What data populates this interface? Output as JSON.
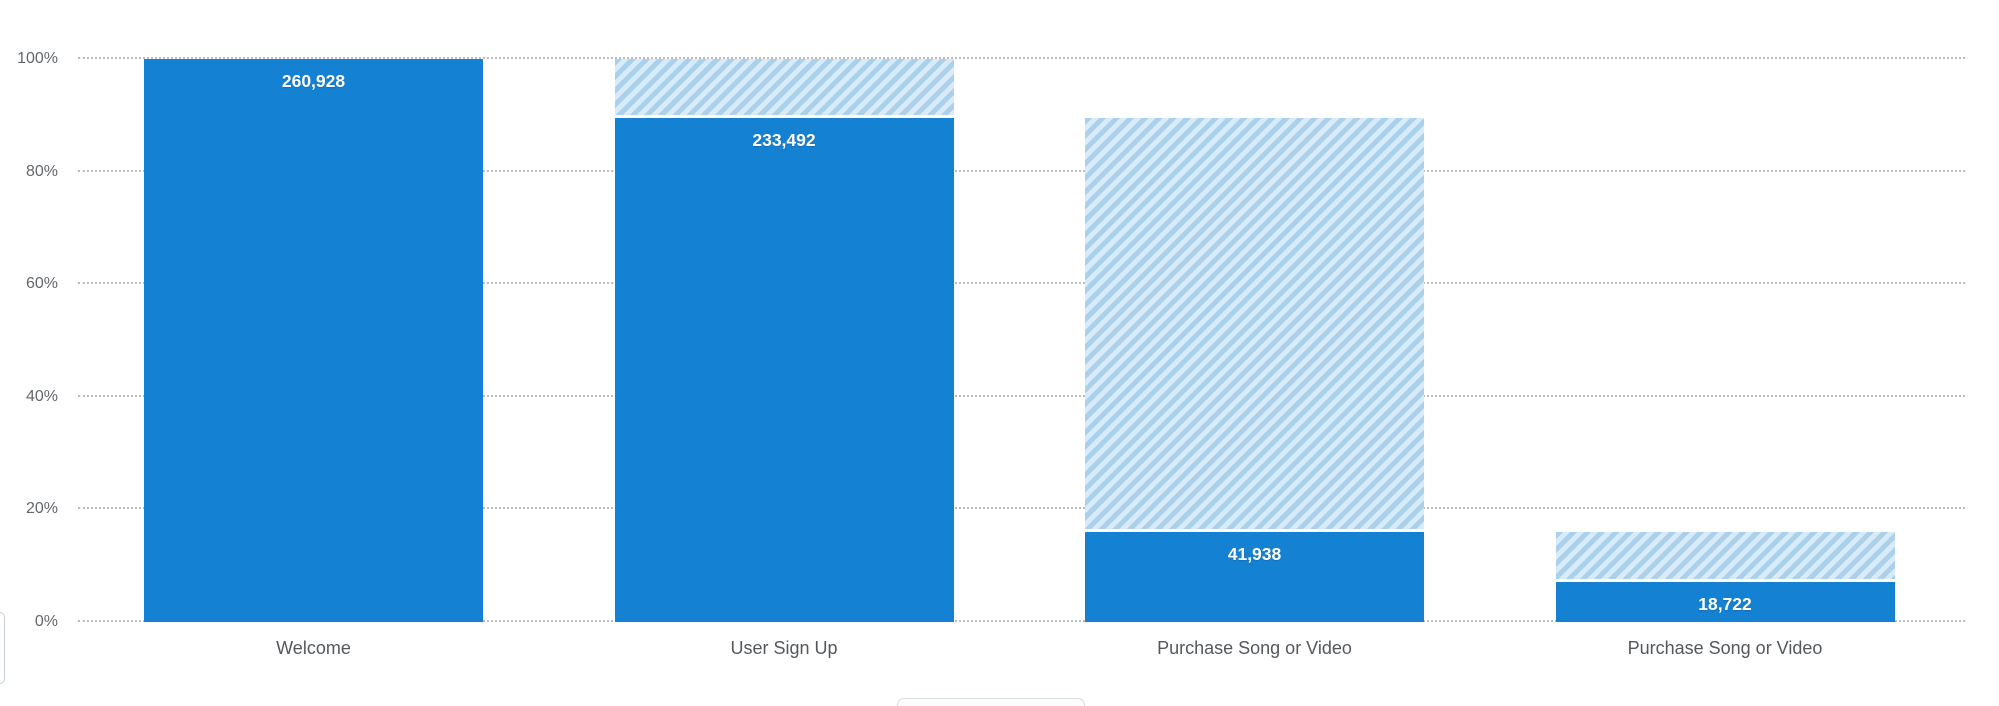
{
  "chart_data": {
    "type": "bar",
    "subtype": "funnel-conversion",
    "title": "",
    "xlabel": "",
    "ylabel": "",
    "ylim": [
      0,
      100
    ],
    "grid": "horizontal dotted",
    "legend": "none",
    "categories": [
      "Welcome",
      "User Sign Up",
      "Purchase Song or Video",
      "Purchase Song or Video"
    ],
    "series": [
      {
        "name": "converted-count",
        "values": [
          260928,
          233492,
          41938,
          18722
        ]
      },
      {
        "name": "previous-step-total-hatched",
        "values": [
          260928,
          260928,
          233492,
          41938
        ]
      }
    ],
    "y_ticks": [
      {
        "label": "0%",
        "pct": 0
      },
      {
        "label": "20%",
        "pct": 20
      },
      {
        "label": "40%",
        "pct": 40
      },
      {
        "label": "60%",
        "pct": 60
      },
      {
        "label": "80%",
        "pct": 80
      },
      {
        "label": "100%",
        "pct": 100
      }
    ],
    "steps": [
      {
        "label": "Welcome",
        "count_text": "260,928",
        "conv_pct": 100,
        "hatch_top_pct": 100
      },
      {
        "label": "User Sign Up",
        "count_text": "233,492",
        "conv_pct": 89.49,
        "hatch_top_pct": 100
      },
      {
        "label": "Purchase Song or Video",
        "count_text": "41,938",
        "conv_pct": 16.07,
        "hatch_top_pct": 89.49
      },
      {
        "label": "Purchase Song or Video",
        "count_text": "18,722",
        "conv_pct": 7.18,
        "hatch_top_pct": 16.07
      }
    ]
  },
  "colors": {
    "bar_solid": "#1581d2",
    "hatch_dark": "#a9d1ec",
    "hatch_light": "#d9ebf8",
    "axis_text": "#5d6166",
    "gridline": "#b9bcc0",
    "count_text": "#ffffff"
  },
  "fragments": {
    "left_edge_element": "partially-visible rounded control at left edge",
    "bottom_center_element": "partially-visible rounded control at bottom center"
  }
}
